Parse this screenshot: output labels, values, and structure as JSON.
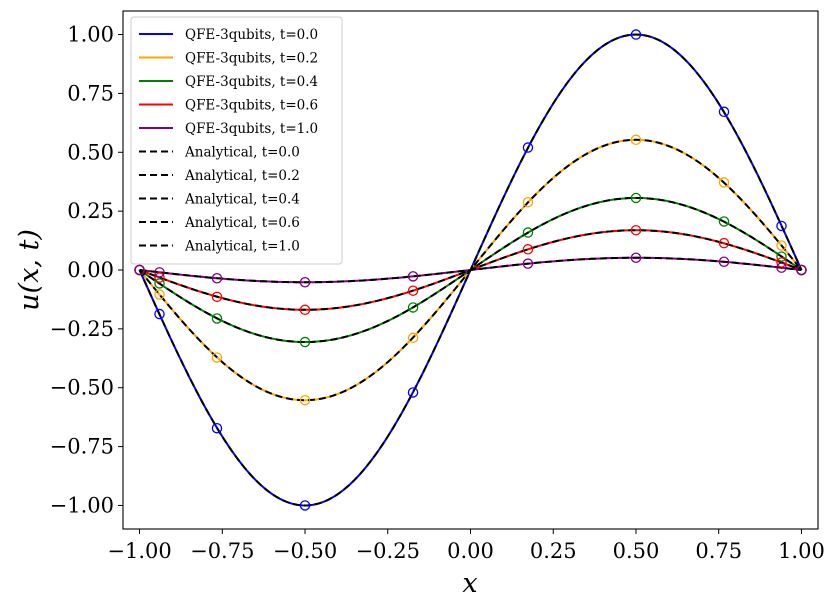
{
  "chart_data": {
    "type": "line",
    "title": "",
    "xlabel": "x",
    "ylabel": "u(x, t)",
    "xlim": [
      -1.05,
      1.05
    ],
    "ylim": [
      -1.1,
      1.1
    ],
    "grid": false,
    "legend_position": "top-left",
    "xticks": [
      -1.0,
      -0.75,
      -0.5,
      -0.25,
      0.0,
      0.25,
      0.5,
      0.75,
      1.0
    ],
    "xtick_labels": [
      "−1.00",
      "−0.75",
      "−0.50",
      "−0.25",
      "0.00",
      "0.25",
      "0.50",
      "0.75",
      "1.00"
    ],
    "yticks": [
      -1.0,
      -0.75,
      -0.5,
      -0.25,
      0.0,
      0.25,
      0.5,
      0.75,
      1.0
    ],
    "ytick_labels": [
      "−1.00",
      "−0.75",
      "−0.50",
      "−0.25",
      "0.00",
      "0.25",
      "0.50",
      "0.75",
      "1.00"
    ],
    "marker_x": [
      -1.0,
      -0.9397,
      -0.766,
      -0.5,
      -0.1736,
      0.1736,
      0.5,
      0.766,
      0.9397,
      1.0
    ],
    "series": [
      {
        "name": "QFE-3qubits, t=0.0",
        "style": "solid",
        "color": "#0000ff",
        "amplitude": 1.0,
        "t": 0.0,
        "markers": [
          0.0,
          -0.187,
          -0.672,
          -1.0,
          -0.52,
          0.52,
          1.0,
          0.672,
          0.187,
          0.0
        ]
      },
      {
        "name": "QFE-3qubits, t=0.2",
        "style": "solid",
        "color": "#ffa500",
        "amplitude": 0.553,
        "t": 0.2,
        "markers": [
          0.0,
          -0.104,
          -0.372,
          -0.553,
          -0.288,
          0.288,
          0.553,
          0.372,
          0.104,
          0.0
        ]
      },
      {
        "name": "QFE-3qubits, t=0.4",
        "style": "solid",
        "color": "#008000",
        "amplitude": 0.306,
        "t": 0.4,
        "markers": [
          0.0,
          -0.057,
          -0.206,
          -0.306,
          -0.159,
          0.159,
          0.306,
          0.206,
          0.057,
          0.0
        ]
      },
      {
        "name": "QFE-3qubits, t=0.6",
        "style": "solid",
        "color": "#ff0000",
        "amplitude": 0.169,
        "t": 0.6,
        "markers": [
          0.0,
          -0.032,
          -0.114,
          -0.169,
          -0.088,
          0.088,
          0.169,
          0.114,
          0.032,
          0.0
        ]
      },
      {
        "name": "QFE-3qubits, t=1.0",
        "style": "solid",
        "color": "#800080",
        "amplitude": 0.052,
        "t": 1.0,
        "markers": [
          0.0,
          -0.01,
          -0.035,
          -0.052,
          -0.027,
          0.027,
          0.052,
          0.035,
          0.01,
          0.0
        ]
      },
      {
        "name": "Analytical, t=0.0",
        "style": "dashed",
        "color": "#000000",
        "amplitude": 1.0,
        "t": 0.0
      },
      {
        "name": "Analytical, t=0.2",
        "style": "dashed",
        "color": "#000000",
        "amplitude": 0.553,
        "t": 0.2
      },
      {
        "name": "Analytical, t=0.4",
        "style": "dashed",
        "color": "#000000",
        "amplitude": 0.306,
        "t": 0.4
      },
      {
        "name": "Analytical, t=0.6",
        "style": "dashed",
        "color": "#000000",
        "amplitude": 0.169,
        "t": 0.6
      },
      {
        "name": "Analytical, t=1.0",
        "style": "dashed",
        "color": "#000000",
        "amplitude": 0.052,
        "t": 1.0
      }
    ],
    "curve_function": "amplitude * sin(pi * x)"
  }
}
